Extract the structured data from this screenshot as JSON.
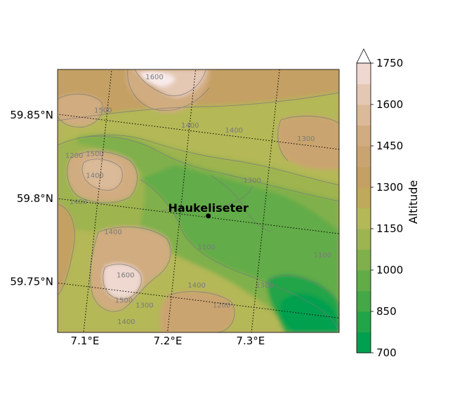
{
  "chart_data": {
    "type": "map",
    "colorbar": {
      "label": "Altitude",
      "levels": [
        700,
        775,
        850,
        925,
        1000,
        1075,
        1150,
        1225,
        1300,
        1375,
        1450,
        1525,
        1600,
        1675,
        1750
      ],
      "tick_values": [
        700,
        850,
        1000,
        1150,
        1300,
        1450,
        1600,
        1750
      ],
      "tick_labels": [
        "700",
        "850",
        "1000",
        "1150",
        "1300",
        "1450",
        "1600",
        "1750"
      ],
      "colors": [
        "#00a050",
        "#22a448",
        "#44a846",
        "#62ac48",
        "#80b04c",
        "#9eb450",
        "#b4b856",
        "#beaa5a",
        "#c4a064",
        "#caa470",
        "#d0ac80",
        "#daba98",
        "#e4c8b4",
        "#eed8d0",
        "#f8eaea"
      ],
      "extend_color": "#ffffff"
    },
    "lon_ticks": [
      {
        "value": 7.1,
        "label": "7.1°E"
      },
      {
        "value": 7.2,
        "label": "7.2°E"
      },
      {
        "value": 7.3,
        "label": "7.3°E"
      }
    ],
    "lat_ticks": [
      {
        "value": 59.85,
        "label": "59.85°N"
      },
      {
        "value": 59.8,
        "label": "59.8°N"
      },
      {
        "value": 59.75,
        "label": "59.75°N"
      }
    ],
    "extent": {
      "lon": [
        7.05,
        7.39
      ],
      "lat": [
        59.73,
        59.888
      ]
    },
    "point": {
      "name": "Haukeliseter",
      "lon": 7.232,
      "lat": 59.8
    },
    "contour_labels": [
      {
        "text": "1600",
        "lon": 7.167,
        "lat": 59.882
      },
      {
        "text": "1500",
        "lon": 7.105,
        "lat": 59.862
      },
      {
        "text": "1500",
        "lon": 7.095,
        "lat": 59.836
      },
      {
        "text": "1400",
        "lon": 7.095,
        "lat": 59.823
      },
      {
        "text": "1400",
        "lon": 7.21,
        "lat": 59.853
      },
      {
        "text": "1400",
        "lon": 7.263,
        "lat": 59.85
      },
      {
        "text": "1400",
        "lon": 7.075,
        "lat": 59.807
      },
      {
        "text": "1300",
        "lon": 7.285,
        "lat": 59.82
      },
      {
        "text": "1300",
        "lon": 7.35,
        "lat": 59.845
      },
      {
        "text": "1200",
        "lon": 7.07,
        "lat": 59.835
      },
      {
        "text": "1100",
        "lon": 7.23,
        "lat": 59.78
      },
      {
        "text": "1400",
        "lon": 7.117,
        "lat": 59.789
      },
      {
        "text": "1600",
        "lon": 7.132,
        "lat": 59.763
      },
      {
        "text": "1500",
        "lon": 7.13,
        "lat": 59.748
      },
      {
        "text": "1300",
        "lon": 7.155,
        "lat": 59.745
      },
      {
        "text": "1400",
        "lon": 7.133,
        "lat": 59.735
      },
      {
        "text": "1400",
        "lon": 7.218,
        "lat": 59.757
      },
      {
        "text": "1200",
        "lon": 7.248,
        "lat": 59.745
      },
      {
        "text": "1300",
        "lon": 7.3,
        "lat": 59.757
      },
      {
        "text": "1100",
        "lon": 7.37,
        "lat": 59.775
      }
    ]
  }
}
